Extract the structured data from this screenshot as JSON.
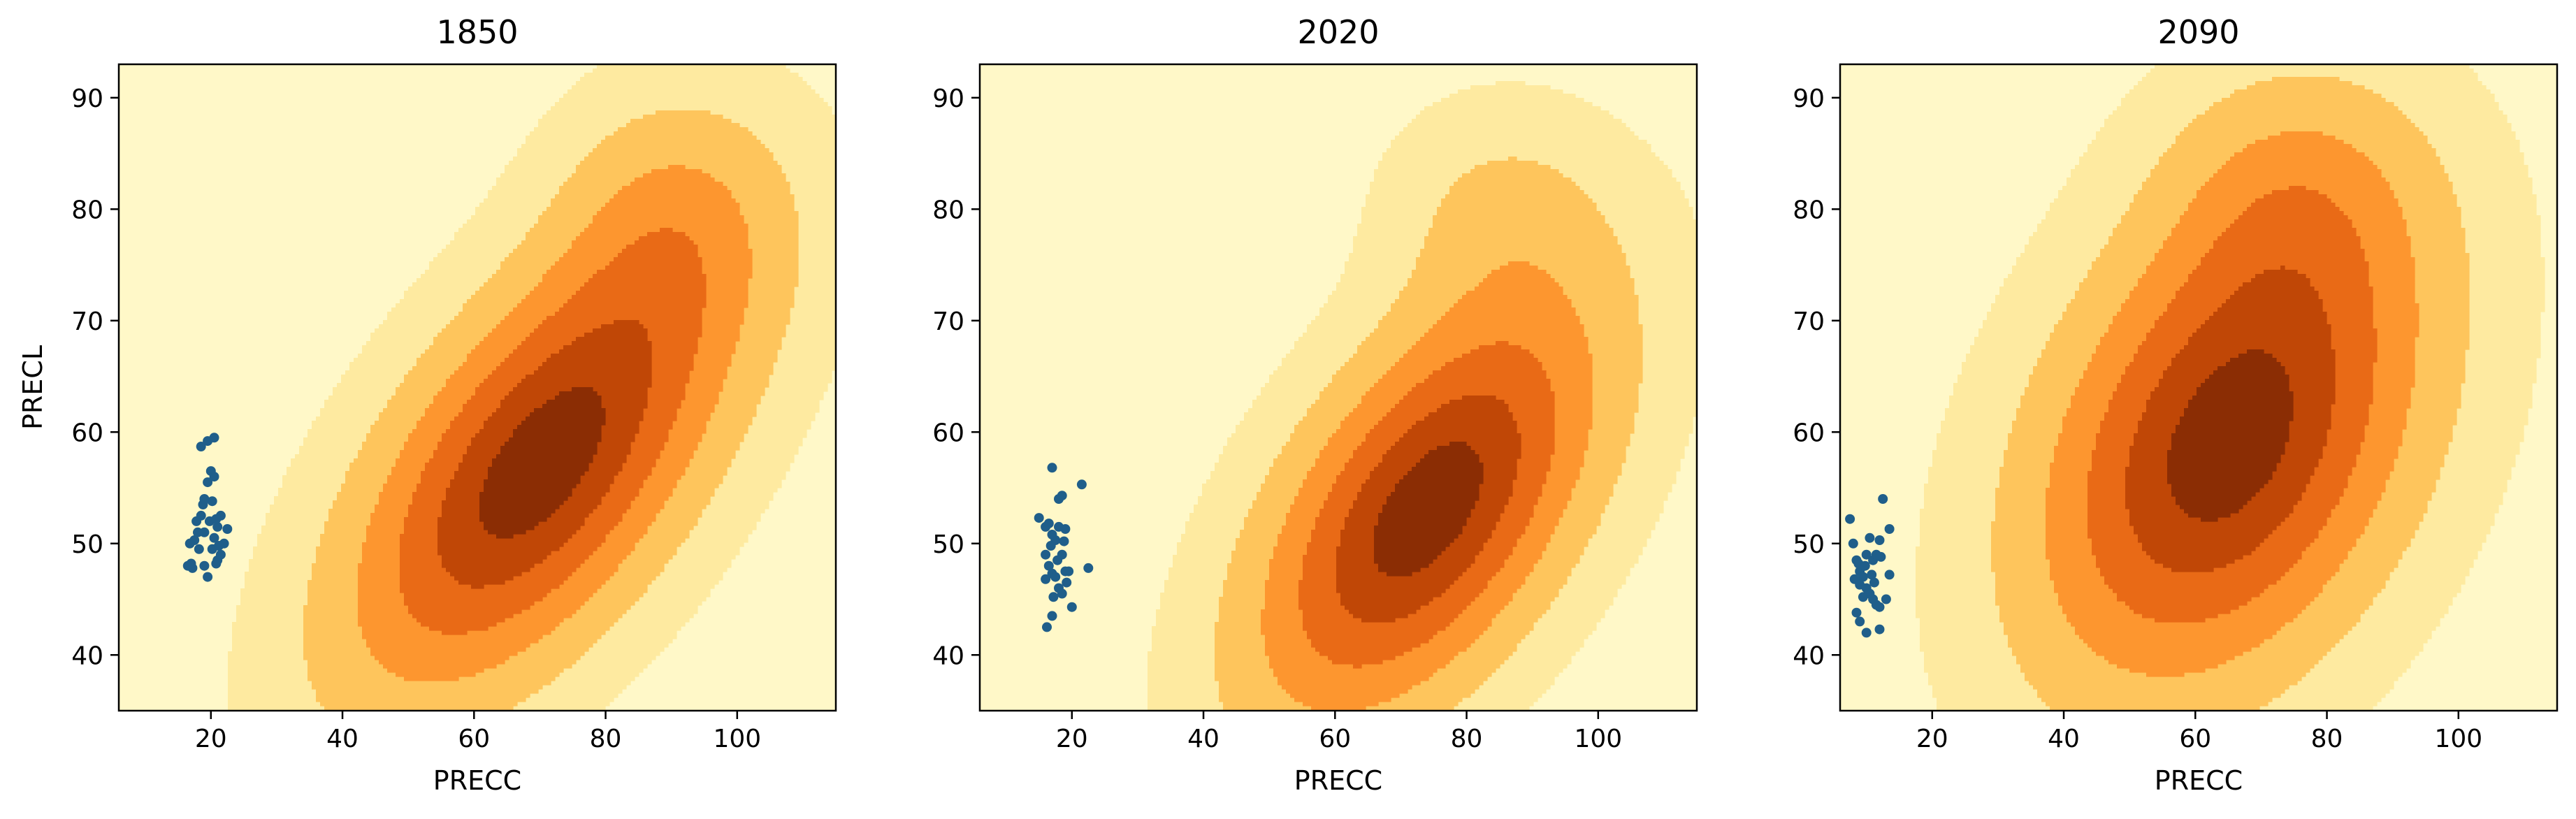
{
  "colors": {
    "background": "#fff8c8",
    "contour_levels": [
      "#fff8c8",
      "#feeaa0",
      "#fec55c",
      "#fd962f",
      "#e96a16",
      "#c04706",
      "#8b2d04"
    ],
    "points": "#1f5e8a",
    "axes": "#000000"
  },
  "chart_data": [
    {
      "type": "scatter",
      "subtype": "kde-contourf-with-scatter",
      "title": "1850",
      "xlabel": "PRECC",
      "ylabel": "PRECL",
      "xlim": [
        6,
        115
      ],
      "ylim": [
        35,
        93
      ],
      "xticks": [
        20,
        40,
        60,
        80,
        100
      ],
      "yticks": [
        40,
        50,
        60,
        70,
        80,
        90
      ],
      "grid": false,
      "density": {
        "center": [
          70,
          57
        ],
        "sx": 20,
        "sy": 14,
        "rho": 0.6,
        "lobes": [
          {
            "center": [
              90,
              80
            ],
            "sx": 12,
            "sy": 8,
            "weight": 0.25
          }
        ]
      },
      "points": [
        [
          16.5,
          48.0
        ],
        [
          17.0,
          48.2
        ],
        [
          17.5,
          50.3
        ],
        [
          18.0,
          51.0
        ],
        [
          18.5,
          52.5
        ],
        [
          17.2,
          47.8
        ],
        [
          18.8,
          53.5
        ],
        [
          19.0,
          54.0
        ],
        [
          19.5,
          55.5
        ],
        [
          20.0,
          56.5
        ],
        [
          20.5,
          56.0
        ],
        [
          18.5,
          58.7
        ],
        [
          19.5,
          59.2
        ],
        [
          20.5,
          59.5
        ],
        [
          19.0,
          48.0
        ],
        [
          19.5,
          47.0
        ],
        [
          20.2,
          49.5
        ],
        [
          20.5,
          50.5
        ],
        [
          21.0,
          51.5
        ],
        [
          21.5,
          52.5
        ],
        [
          21.0,
          48.5
        ],
        [
          21.5,
          49.0
        ],
        [
          20.8,
          48.2
        ],
        [
          22.0,
          50.0
        ],
        [
          22.5,
          51.3
        ],
        [
          16.8,
          50.0
        ],
        [
          17.8,
          52.0
        ],
        [
          19.8,
          52.0
        ],
        [
          20.2,
          53.8
        ],
        [
          21.2,
          49.8
        ],
        [
          18.2,
          49.5
        ],
        [
          19.0,
          51.0
        ],
        [
          20.8,
          52.2
        ]
      ]
    },
    {
      "type": "scatter",
      "subtype": "kde-contourf-with-scatter",
      "title": "2020",
      "xlabel": "PRECC",
      "ylabel": "",
      "xlim": [
        6,
        115
      ],
      "ylim": [
        35,
        93
      ],
      "xticks": [
        20,
        40,
        60,
        80,
        100
      ],
      "yticks": [
        40,
        50,
        60,
        70,
        80,
        90
      ],
      "grid": false,
      "density": {
        "center": [
          74,
          53
        ],
        "sx": 18,
        "sy": 13,
        "rho": 0.55,
        "lobes": [
          {
            "center": [
              85,
              80
            ],
            "sx": 12,
            "sy": 7,
            "weight": 0.2
          }
        ]
      },
      "points": [
        [
          15.0,
          52.3
        ],
        [
          16.0,
          51.5
        ],
        [
          17.0,
          56.8
        ],
        [
          16.5,
          51.8
        ],
        [
          17.5,
          50.3
        ],
        [
          18.0,
          54.0
        ],
        [
          18.5,
          54.3
        ],
        [
          16.0,
          49.0
        ],
        [
          16.5,
          48.0
        ],
        [
          17.0,
          47.3
        ],
        [
          17.5,
          47.0
        ],
        [
          18.0,
          46.0
        ],
        [
          18.5,
          45.5
        ],
        [
          19.0,
          47.5
        ],
        [
          17.0,
          50.8
        ],
        [
          18.0,
          51.5
        ],
        [
          19.0,
          51.3
        ],
        [
          16.2,
          42.5
        ],
        [
          17.0,
          43.5
        ],
        [
          20.0,
          44.3
        ],
        [
          21.5,
          55.3
        ],
        [
          22.5,
          47.8
        ],
        [
          19.5,
          47.5
        ],
        [
          16.8,
          49.8
        ],
        [
          17.8,
          48.5
        ],
        [
          18.5,
          49.0
        ],
        [
          18.8,
          50.2
        ],
        [
          16.0,
          46.8
        ],
        [
          17.2,
          45.2
        ],
        [
          19.2,
          46.5
        ]
      ]
    },
    {
      "type": "scatter",
      "subtype": "kde-contourf-with-scatter",
      "title": "2090",
      "xlabel": "PRECC",
      "ylabel": "",
      "xlim": [
        6,
        115
      ],
      "ylim": [
        35,
        93
      ],
      "xticks": [
        20,
        40,
        60,
        80,
        100
      ],
      "yticks": [
        40,
        50,
        60,
        70,
        80,
        90
      ],
      "grid": false,
      "density": {
        "center": [
          65,
          59
        ],
        "sx": 20,
        "sy": 15,
        "rho": 0.35,
        "lobes": [
          {
            "center": [
              75,
              82
            ],
            "sx": 14,
            "sy": 8,
            "weight": 0.25
          }
        ]
      },
      "points": [
        [
          7.5,
          52.2
        ],
        [
          8.0,
          50.0
        ],
        [
          8.5,
          48.5
        ],
        [
          9.0,
          47.5
        ],
        [
          9.5,
          47.0
        ],
        [
          10.0,
          49.0
        ],
        [
          10.5,
          50.5
        ],
        [
          11.0,
          48.5
        ],
        [
          11.5,
          49.0
        ],
        [
          12.0,
          50.3
        ],
        [
          12.5,
          54.0
        ],
        [
          13.5,
          51.3
        ],
        [
          8.2,
          46.8
        ],
        [
          9.0,
          46.3
        ],
        [
          10.0,
          46.0
        ],
        [
          10.5,
          45.5
        ],
        [
          11.0,
          45.0
        ],
        [
          11.5,
          44.5
        ],
        [
          12.0,
          44.3
        ],
        [
          13.0,
          45.0
        ],
        [
          13.5,
          47.2
        ],
        [
          8.5,
          43.8
        ],
        [
          9.0,
          43.0
        ],
        [
          10.0,
          42.0
        ],
        [
          12.0,
          42.3
        ],
        [
          8.8,
          48.2
        ],
        [
          9.8,
          48.0
        ],
        [
          10.8,
          47.2
        ],
        [
          12.2,
          48.8
        ],
        [
          11.2,
          46.5
        ],
        [
          9.5,
          45.2
        ]
      ]
    }
  ]
}
